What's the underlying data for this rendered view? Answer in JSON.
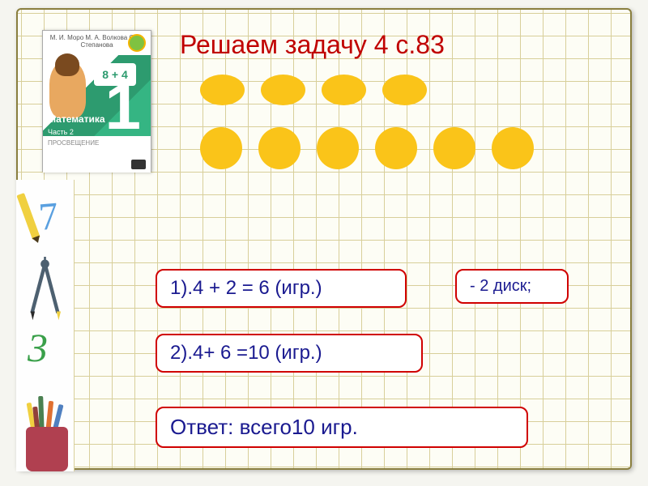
{
  "title": "Решаем  задачу 4 с.83",
  "textbook": {
    "authors": "М. И. Моро   М. А. Волкова   С. В. Степанова",
    "subject": "Математика",
    "card_equation": "8 + 4",
    "big_digit": "1",
    "part": "Часть 2",
    "publisher": "ПРОСВЕЩЕНИЕ"
  },
  "left_strip": {
    "digit_top": "7",
    "digit_mid": "3"
  },
  "counters": {
    "row1_count": 4,
    "row2_count": 6,
    "shape_color": "#fac419",
    "row1_shape": "oval",
    "row2_shape": "circle"
  },
  "boxes": {
    "step1": "1).4 + 2 = 6 (игр.)",
    "note": "- 2 диск;",
    "step2": "2).4+ 6 =10 (игр.)",
    "answer": "Ответ: всего10 игр."
  },
  "style": {
    "title_color": "#c00000",
    "box_border": "#d00000",
    "box_text": "#1a1a90",
    "grid_line": "#d8cf9a",
    "background": "#fdfdf5"
  }
}
